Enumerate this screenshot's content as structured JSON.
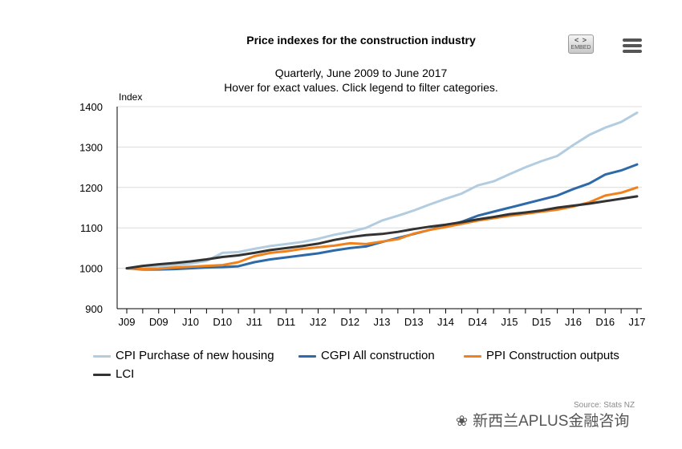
{
  "header": {
    "title": "Price indexes for the construction industry",
    "subtitle_line1": "Quarterly, June 2009 to June 2017",
    "subtitle_line2": "Hover for exact values. Click legend to filter categories."
  },
  "toolbar": {
    "embed_code": "< >",
    "embed_label": "EMBED",
    "menu_icon": "hamburger-menu-icon"
  },
  "footer": {
    "source": "Source: Stats NZ",
    "watermark": "新西兰APLUS金融咨询",
    "watermark_icon": "wechat-icon"
  },
  "chart_data": {
    "type": "line",
    "title": "Price indexes for the construction industry",
    "ylabel": "Index",
    "ylim": [
      900,
      1400
    ],
    "yticks": [
      900,
      1000,
      1100,
      1200,
      1300,
      1400
    ],
    "xtick_labels": [
      "J09",
      "D09",
      "J10",
      "D10",
      "J11",
      "D11",
      "J12",
      "D12",
      "J13",
      "D13",
      "J14",
      "D14",
      "J15",
      "D15",
      "J16",
      "D16",
      "J17"
    ],
    "x": [
      "Jun 2009",
      "Sep 2009",
      "Dec 2009",
      "Mar 2010",
      "Jun 2010",
      "Sep 2010",
      "Dec 2010",
      "Mar 2011",
      "Jun 2011",
      "Sep 2011",
      "Dec 2011",
      "Mar 2012",
      "Jun 2012",
      "Sep 2012",
      "Dec 2012",
      "Mar 2013",
      "Jun 2013",
      "Sep 2013",
      "Dec 2013",
      "Mar 2014",
      "Jun 2014",
      "Sep 2014",
      "Dec 2014",
      "Mar 2015",
      "Jun 2015",
      "Sep 2015",
      "Dec 2015",
      "Mar 2016",
      "Jun 2016",
      "Sep 2016",
      "Dec 2016",
      "Mar 2017",
      "Jun 2017"
    ],
    "grid": true,
    "legend_position": "bottom",
    "series": [
      {
        "name": "CPI Purchase of new housing",
        "color": "#b3cde0",
        "values": [
          1000,
          1003,
          1005,
          1008,
          1012,
          1018,
          1038,
          1040,
          1048,
          1055,
          1060,
          1065,
          1073,
          1083,
          1090,
          1100,
          1118,
          1130,
          1143,
          1158,
          1172,
          1185,
          1205,
          1215,
          1233,
          1250,
          1265,
          1278,
          1305,
          1330,
          1348,
          1362,
          1385
        ]
      },
      {
        "name": "CGPI All construction",
        "color": "#2e6aa8",
        "values": [
          1000,
          997,
          997,
          998,
          1000,
          1002,
          1003,
          1005,
          1015,
          1022,
          1027,
          1032,
          1037,
          1044,
          1050,
          1054,
          1065,
          1075,
          1085,
          1095,
          1105,
          1115,
          1130,
          1140,
          1150,
          1160,
          1170,
          1180,
          1196,
          1210,
          1232,
          1242,
          1257
        ]
      },
      {
        "name": "PPI Construction outputs",
        "color": "#f0821e",
        "values": [
          1000,
          998,
          999,
          1002,
          1004,
          1006,
          1008,
          1015,
          1030,
          1038,
          1042,
          1048,
          1052,
          1056,
          1062,
          1060,
          1066,
          1072,
          1086,
          1095,
          1102,
          1110,
          1118,
          1124,
          1130,
          1135,
          1140,
          1145,
          1153,
          1163,
          1180,
          1187,
          1200
        ]
      },
      {
        "name": "LCI",
        "color": "#333333",
        "values": [
          1000,
          1006,
          1010,
          1013,
          1017,
          1022,
          1028,
          1032,
          1038,
          1045,
          1050,
          1055,
          1061,
          1070,
          1077,
          1082,
          1085,
          1090,
          1097,
          1103,
          1108,
          1114,
          1121,
          1127,
          1134,
          1138,
          1143,
          1150,
          1155,
          1160,
          1166,
          1172,
          1178
        ]
      }
    ]
  }
}
